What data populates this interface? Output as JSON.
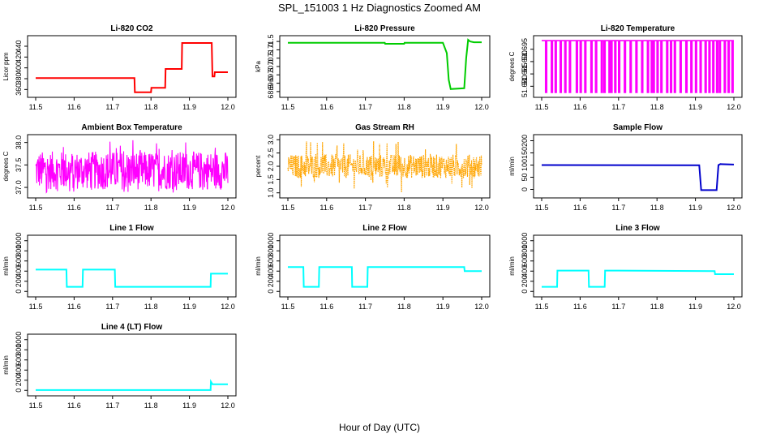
{
  "figure": {
    "title": "SPL_151003  1 Hz Diagnostics Zoomed AM",
    "xlabel": "Hour of Day (UTC)"
  },
  "chart_data": [
    {
      "type": "line",
      "title": "Li-820 CO2",
      "ylabel": "Licor ppm",
      "color": "#ff0000",
      "xlim": [
        11.5,
        12.0
      ],
      "ylim": [
        350,
        455
      ],
      "xticks": [
        11.5,
        11.6,
        11.7,
        11.8,
        11.9,
        12.0
      ],
      "yticks": [
        360,
        380,
        400,
        420,
        440
      ],
      "x": [
        11.5,
        11.757,
        11.758,
        11.8,
        11.801,
        11.837,
        11.838,
        11.88,
        11.881,
        11.958,
        11.96,
        11.965,
        11.966,
        12.0
      ],
      "y": [
        381,
        381,
        355,
        355,
        363,
        363,
        398,
        398,
        446,
        446,
        384,
        384,
        392,
        392
      ]
    },
    {
      "type": "line",
      "title": "Li-820 Pressure",
      "ylabel": "kPa",
      "color": "#00cc00",
      "xlim": [
        11.5,
        12.0
      ],
      "ylim": [
        68.3,
        71.7
      ],
      "xticks": [
        11.5,
        11.6,
        11.7,
        11.8,
        11.9,
        12.0
      ],
      "yticks": [
        68.5,
        69.0,
        69.5,
        70.0,
        70.5,
        71.0,
        71.5
      ],
      "x": [
        11.5,
        11.75,
        11.751,
        11.8,
        11.801,
        11.9,
        11.91,
        11.915,
        11.92,
        11.955,
        11.96,
        11.965,
        11.97,
        11.98,
        12.0
      ],
      "y": [
        71.42,
        71.42,
        71.36,
        71.36,
        71.42,
        71.42,
        70.8,
        69.2,
        68.65,
        68.7,
        70.5,
        71.6,
        71.5,
        71.45,
        71.45
      ]
    },
    {
      "type": "line",
      "title": "Li-820 Temperature",
      "ylabel": "degrees C",
      "color": "#ff00ff",
      "xlim": [
        11.5,
        12.0
      ],
      "ylim": [
        51.6765,
        51.6995
      ],
      "xticks": [
        11.5,
        11.6,
        11.7,
        11.8,
        11.9,
        12.0
      ],
      "yticks": [
        51.68,
        51.685,
        51.69,
        51.695
      ],
      "y_low": 51.6775,
      "y_high": 51.6985,
      "toggles": [
        11.51,
        11.525,
        11.535,
        11.548,
        11.56,
        11.572,
        11.59,
        11.6,
        11.612,
        11.628,
        11.64,
        11.655,
        11.662,
        11.675,
        11.68,
        11.69,
        11.7,
        11.715,
        11.73,
        11.745,
        11.76,
        11.775,
        11.785,
        11.79,
        11.8,
        11.81,
        11.825,
        11.835,
        11.845,
        11.86,
        11.875,
        11.888,
        11.9,
        11.912,
        11.925,
        11.935,
        11.945,
        11.955,
        11.962,
        11.975,
        11.985,
        11.995
      ]
    },
    {
      "type": "line",
      "title": "Ambient Box Temperature",
      "ylabel": "degrees C",
      "color": "#ff00ff",
      "xlim": [
        11.5,
        12.0
      ],
      "ylim": [
        36.82,
        38.12
      ],
      "xticks": [
        11.5,
        11.6,
        11.7,
        11.8,
        11.9,
        12.0
      ],
      "yticks": [
        37.0,
        37.5,
        38.0
      ],
      "band": [
        36.95,
        37.8
      ],
      "spike_low": 36.88,
      "spike_high": 38.05
    },
    {
      "type": "scatter",
      "title": "Gas Stream RH",
      "ylabel": "percent",
      "color": "#ffa500",
      "xlim": [
        11.5,
        12.0
      ],
      "ylim": [
        0.9,
        3.1
      ],
      "xticks": [
        11.5,
        11.6,
        11.7,
        11.8,
        11.9,
        12.0
      ],
      "yticks": [
        1.0,
        1.5,
        2.0,
        2.5,
        3.0
      ],
      "band": [
        1.55,
        2.45
      ],
      "spike_low": 1.0,
      "spike_high": 2.95
    },
    {
      "type": "line",
      "title": "Sample Flow",
      "ylabel": "ml/min",
      "color": "#0000cc",
      "xlim": [
        11.5,
        12.0
      ],
      "ylim": [
        -25,
        215
      ],
      "xticks": [
        11.5,
        11.6,
        11.7,
        11.8,
        11.9,
        12.0
      ],
      "yticks": [
        0,
        50,
        100,
        150,
        200
      ],
      "x": [
        11.5,
        11.91,
        11.915,
        11.955,
        11.96,
        11.965,
        12.0
      ],
      "y": [
        100,
        99,
        -3,
        -3,
        100,
        104,
        102
      ]
    },
    {
      "type": "line",
      "title": "Line 1 Flow",
      "ylabel": "ml/min",
      "color": "#00ffff",
      "xlim": [
        11.5,
        12.0
      ],
      "ylim": [
        -60,
        1060
      ],
      "xticks": [
        11.5,
        11.6,
        11.7,
        11.8,
        11.9,
        12.0
      ],
      "yticks": [
        0,
        200,
        400,
        600,
        800,
        1000
      ],
      "x": [
        11.5,
        11.58,
        11.581,
        11.622,
        11.623,
        11.706,
        11.707,
        11.955,
        11.956,
        12.0
      ],
      "y": [
        430,
        430,
        90,
        90,
        430,
        430,
        90,
        90,
        350,
        350
      ]
    },
    {
      "type": "line",
      "title": "Line 2 Flow",
      "ylabel": "ml/min",
      "color": "#00ffff",
      "xlim": [
        11.5,
        12.0
      ],
      "ylim": [
        -60,
        1060
      ],
      "xticks": [
        11.5,
        11.6,
        11.7,
        11.8,
        11.9,
        12.0
      ],
      "yticks": [
        0,
        200,
        400,
        600,
        800,
        1000
      ],
      "x": [
        11.5,
        11.54,
        11.541,
        11.58,
        11.581,
        11.665,
        11.666,
        11.705,
        11.706,
        11.955,
        11.956,
        12.0
      ],
      "y": [
        480,
        480,
        90,
        90,
        480,
        480,
        90,
        90,
        480,
        480,
        400,
        400
      ]
    },
    {
      "type": "line",
      "title": "Line 3 Flow",
      "ylabel": "ml/min",
      "color": "#00ffff",
      "xlim": [
        11.5,
        12.0
      ],
      "ylim": [
        -60,
        1060
      ],
      "xticks": [
        11.5,
        11.6,
        11.7,
        11.8,
        11.9,
        12.0
      ],
      "yticks": [
        0,
        200,
        400,
        600,
        800,
        1000
      ],
      "x": [
        11.5,
        11.54,
        11.541,
        11.622,
        11.623,
        11.664,
        11.665,
        11.95,
        11.951,
        12.0
      ],
      "y": [
        90,
        90,
        410,
        410,
        90,
        90,
        410,
        400,
        340,
        340
      ]
    },
    {
      "type": "line",
      "title": "Line 4 (LT) Flow",
      "ylabel": "ml/min",
      "color": "#00ffff",
      "xlim": [
        11.5,
        12.0
      ],
      "ylim": [
        -60,
        1060
      ],
      "xticks": [
        11.5,
        11.6,
        11.7,
        11.8,
        11.9,
        12.0
      ],
      "yticks": [
        0,
        200,
        400,
        600,
        800,
        1000
      ],
      "x": [
        11.5,
        11.955,
        11.956,
        11.96,
        11.961,
        12.0
      ],
      "y": [
        5,
        5,
        170,
        120,
        120,
        120
      ]
    }
  ]
}
